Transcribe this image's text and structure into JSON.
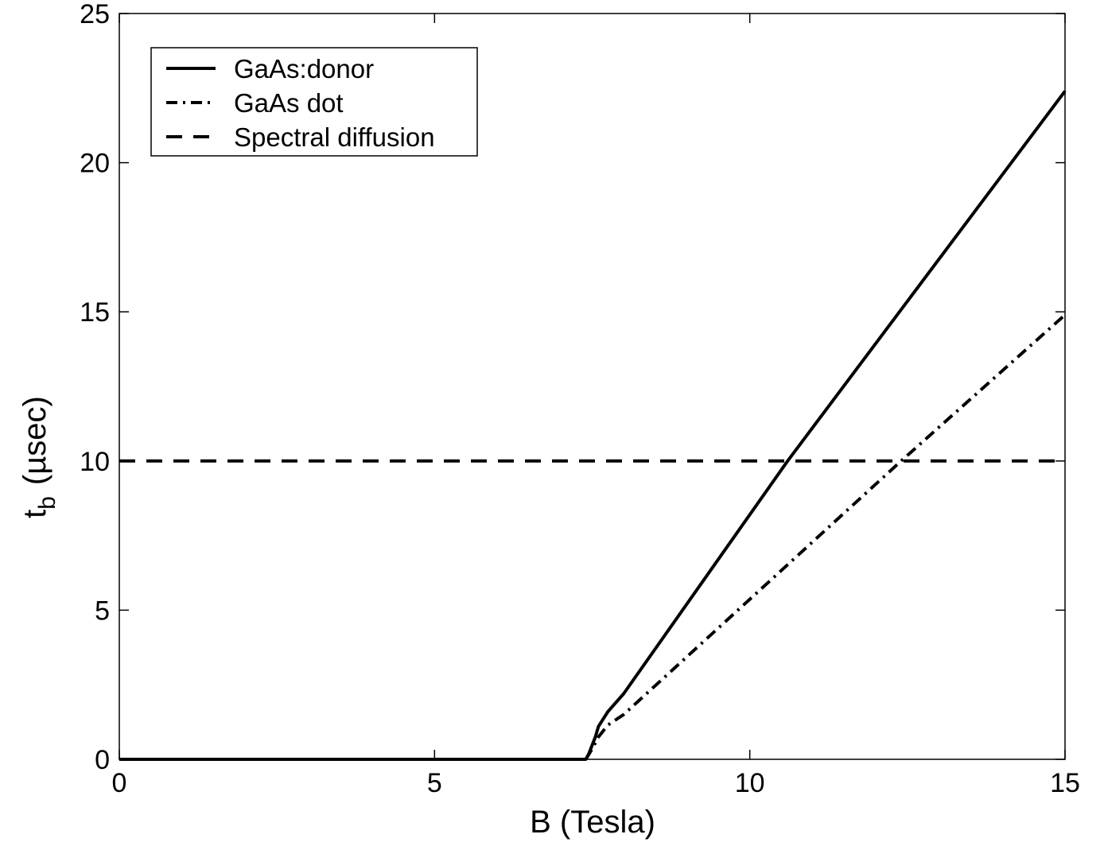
{
  "chart_data": {
    "type": "line",
    "xlabel": "B (Tesla)",
    "ylabel_main": "t",
    "ylabel_sub": "b",
    "ylabel_unit": "(µsec)",
    "xlim": [
      0,
      15
    ],
    "ylim": [
      0,
      25
    ],
    "xticks": [
      0,
      5,
      10,
      15
    ],
    "yticks": [
      0,
      5,
      10,
      15,
      20,
      25
    ],
    "grid": false,
    "legend_position": "top-left",
    "series": [
      {
        "name": "GaAs:donor",
        "style": "solid",
        "color": "#000000",
        "x": [
          0,
          7.4,
          7.45,
          7.55,
          7.6,
          7.75,
          8.0,
          10.6,
          15.0
        ],
        "y": [
          0,
          0,
          0.2,
          0.75,
          1.1,
          1.6,
          2.2,
          10.0,
          22.4
        ]
      },
      {
        "name": "GaAs dot",
        "style": "dashdot",
        "color": "#000000",
        "x": [
          7.4,
          7.5,
          7.6,
          7.75,
          8.0,
          12.4,
          15.0
        ],
        "y": [
          0,
          0.35,
          0.75,
          1.15,
          1.5,
          10.0,
          14.9
        ]
      },
      {
        "name": "Spectral diffusion",
        "style": "dashed",
        "color": "#000000",
        "x": [
          0,
          15
        ],
        "y": [
          10,
          10
        ]
      }
    ]
  }
}
